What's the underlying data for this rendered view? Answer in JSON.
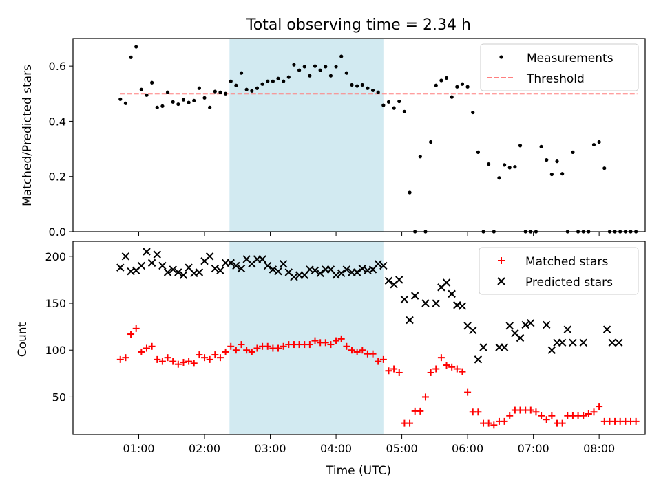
{
  "title": "Total observing time = 2.34 h",
  "chart_data": [
    {
      "type": "scatter",
      "ylabel": "Matched/Predicted stars",
      "xlabel": "",
      "ylim": [
        0,
        0.7
      ],
      "yticks": [
        0.0,
        0.2,
        0.4,
        0.6
      ],
      "ytick_labels": [
        "0.0",
        "0.2",
        "0.4",
        "0.6"
      ],
      "grid": false,
      "legend_position": "top-right",
      "shaded_span": {
        "x_start": 2.38,
        "x_end": 4.72,
        "color": "#add8e6"
      },
      "threshold": {
        "name": "Threshold",
        "value": 0.5,
        "x_start": 0.72,
        "x_end": 8.58,
        "color": "#ff7f7f"
      },
      "series": [
        {
          "name": "Measurements",
          "marker": "dot",
          "color": "#000000",
          "x": [
            0.72,
            0.8,
            0.88,
            0.96,
            1.04,
            1.12,
            1.2,
            1.28,
            1.36,
            1.44,
            1.52,
            1.6,
            1.68,
            1.76,
            1.84,
            1.92,
            2.0,
            2.08,
            2.16,
            2.24,
            2.32,
            2.4,
            2.48,
            2.56,
            2.64,
            2.72,
            2.8,
            2.88,
            2.96,
            3.04,
            3.12,
            3.2,
            3.28,
            3.36,
            3.44,
            3.52,
            3.6,
            3.68,
            3.76,
            3.84,
            3.92,
            4.0,
            4.08,
            4.16,
            4.24,
            4.32,
            4.4,
            4.48,
            4.56,
            4.64,
            4.72,
            4.8,
            4.88,
            4.96,
            5.04,
            5.12,
            5.2,
            5.28,
            5.36,
            5.44,
            5.52,
            5.6,
            5.68,
            5.76,
            5.84,
            5.92,
            6.0,
            6.08,
            6.16,
            6.24,
            6.32,
            6.4,
            6.48,
            6.56,
            6.64,
            6.72,
            6.8,
            6.88,
            6.96,
            7.04,
            7.12,
            7.2,
            7.28,
            7.36,
            7.44,
            7.52,
            7.6,
            7.68,
            7.76,
            7.84,
            7.92,
            8.0,
            8.08,
            8.16,
            8.24,
            8.32,
            8.4,
            8.48,
            8.56
          ],
          "y": [
            0.48,
            0.465,
            0.632,
            0.67,
            0.515,
            0.495,
            0.54,
            0.45,
            0.455,
            0.505,
            0.47,
            0.462,
            0.478,
            0.468,
            0.475,
            0.52,
            0.485,
            0.45,
            0.508,
            0.505,
            0.5,
            0.545,
            0.53,
            0.575,
            0.515,
            0.51,
            0.52,
            0.535,
            0.545,
            0.545,
            0.555,
            0.545,
            0.56,
            0.605,
            0.585,
            0.598,
            0.565,
            0.6,
            0.585,
            0.598,
            0.565,
            0.598,
            0.635,
            0.575,
            0.532,
            0.528,
            0.532,
            0.52,
            0.512,
            0.505,
            0.458,
            0.47,
            0.448,
            0.472,
            0.435,
            0.142,
            0.0,
            0.272,
            0.0,
            0.325,
            0.53,
            0.548,
            0.557,
            0.488,
            0.525,
            0.535,
            0.525,
            0.432,
            0.288,
            0.0,
            0.245,
            0.0,
            0.195,
            0.242,
            0.232,
            0.235,
            0.312,
            0.0,
            0.0,
            0.0,
            0.308,
            0.26,
            0.208,
            0.255,
            0.21,
            0.0,
            0.288,
            0.0,
            0.0,
            0.0,
            0.315,
            0.325,
            0.23,
            0.0,
            0.0,
            0.0,
            0.0,
            0.0,
            0.0
          ]
        }
      ]
    },
    {
      "type": "scatter",
      "ylabel": "Count",
      "xlabel": "Time (UTC)",
      "xlim": [
        0.0,
        8.7
      ],
      "ylim": [
        10,
        216
      ],
      "yticks": [
        50,
        100,
        150,
        200
      ],
      "ytick_labels": [
        "50",
        "100",
        "150",
        "200"
      ],
      "xticks": [
        1,
        2,
        3,
        4,
        5,
        6,
        7,
        8
      ],
      "xtick_labels": [
        "01:00",
        "02:00",
        "03:00",
        "04:00",
        "05:00",
        "06:00",
        "07:00",
        "08:00"
      ],
      "grid": false,
      "legend_position": "top-right",
      "shaded_span": {
        "x_start": 2.38,
        "x_end": 4.72,
        "color": "#add8e6"
      },
      "series": [
        {
          "name": "Matched stars",
          "marker": "plus",
          "color": "#ff0000",
          "x": [
            0.72,
            0.8,
            0.88,
            0.96,
            1.04,
            1.12,
            1.2,
            1.28,
            1.36,
            1.44,
            1.52,
            1.6,
            1.68,
            1.76,
            1.84,
            1.92,
            2.0,
            2.08,
            2.16,
            2.24,
            2.32,
            2.4,
            2.48,
            2.56,
            2.64,
            2.72,
            2.8,
            2.88,
            2.96,
            3.04,
            3.12,
            3.2,
            3.28,
            3.36,
            3.44,
            3.52,
            3.6,
            3.68,
            3.76,
            3.84,
            3.92,
            4.0,
            4.08,
            4.16,
            4.24,
            4.32,
            4.4,
            4.48,
            4.56,
            4.64,
            4.72,
            4.8,
            4.88,
            4.96,
            5.04,
            5.12,
            5.2,
            5.28,
            5.36,
            5.44,
            5.52,
            5.6,
            5.68,
            5.76,
            5.84,
            5.92,
            6.0,
            6.08,
            6.16,
            6.24,
            6.32,
            6.4,
            6.48,
            6.56,
            6.64,
            6.72,
            6.8,
            6.88,
            6.96,
            7.04,
            7.12,
            7.2,
            7.28,
            7.36,
            7.44,
            7.52,
            7.6,
            7.68,
            7.76,
            7.84,
            7.92,
            8.0,
            8.08,
            8.16,
            8.24,
            8.32,
            8.4,
            8.48,
            8.56
          ],
          "y": [
            90,
            92,
            117,
            123,
            98,
            102,
            104,
            90,
            88,
            92,
            88,
            85,
            87,
            88,
            86,
            95,
            92,
            90,
            95,
            92,
            98,
            104,
            100,
            106,
            100,
            98,
            102,
            104,
            104,
            102,
            102,
            104,
            106,
            106,
            106,
            106,
            106,
            110,
            108,
            108,
            106,
            110,
            112,
            104,
            100,
            98,
            100,
            96,
            96,
            88,
            90,
            78,
            80,
            76,
            22,
            22,
            35,
            35,
            50,
            76,
            80,
            92,
            84,
            82,
            80,
            77,
            55,
            34,
            34,
            22,
            22,
            20,
            24,
            24,
            30,
            36,
            36,
            36,
            36,
            34,
            30,
            26,
            30,
            22,
            22,
            30,
            30,
            30,
            30,
            32,
            34,
            40,
            24,
            24,
            24,
            24,
            24,
            24,
            24
          ]
        },
        {
          "name": "Predicted stars",
          "marker": "x",
          "color": "#000000",
          "x": [
            0.72,
            0.8,
            0.88,
            0.96,
            1.04,
            1.12,
            1.2,
            1.28,
            1.36,
            1.44,
            1.52,
            1.6,
            1.68,
            1.76,
            1.84,
            1.92,
            2.0,
            2.08,
            2.16,
            2.24,
            2.32,
            2.4,
            2.48,
            2.56,
            2.64,
            2.72,
            2.8,
            2.88,
            2.96,
            3.04,
            3.12,
            3.2,
            3.28,
            3.36,
            3.44,
            3.52,
            3.6,
            3.68,
            3.76,
            3.84,
            3.92,
            4.0,
            4.08,
            4.16,
            4.24,
            4.32,
            4.4,
            4.48,
            4.56,
            4.64,
            4.72,
            4.8,
            4.88,
            4.96,
            5.04,
            5.12,
            5.2,
            5.36,
            5.52,
            5.6,
            5.68,
            5.76,
            5.84,
            5.92,
            6.0,
            6.08,
            6.16,
            6.24,
            6.48,
            6.56,
            6.64,
            6.72,
            6.8,
            6.88,
            6.96,
            7.2,
            7.28,
            7.36,
            7.44,
            7.52,
            7.6,
            7.76,
            8.12,
            8.2,
            8.3
          ],
          "y": [
            188,
            200,
            184,
            185,
            190,
            205,
            193,
            202,
            190,
            183,
            186,
            183,
            180,
            188,
            182,
            183,
            195,
            200,
            187,
            185,
            193,
            193,
            190,
            187,
            197,
            192,
            197,
            197,
            190,
            186,
            184,
            192,
            183,
            178,
            180,
            180,
            186,
            185,
            182,
            186,
            186,
            180,
            182,
            186,
            183,
            183,
            187,
            185,
            186,
            192,
            190,
            174,
            170,
            175,
            154,
            132,
            158,
            150,
            150,
            167,
            172,
            160,
            148,
            147,
            126,
            121,
            90,
            103,
            103,
            103,
            126,
            118,
            113,
            127,
            129,
            127,
            100,
            108,
            108,
            122,
            108,
            108,
            122,
            108,
            108
          ],
          "note_ignore": ""
        }
      ]
    }
  ]
}
